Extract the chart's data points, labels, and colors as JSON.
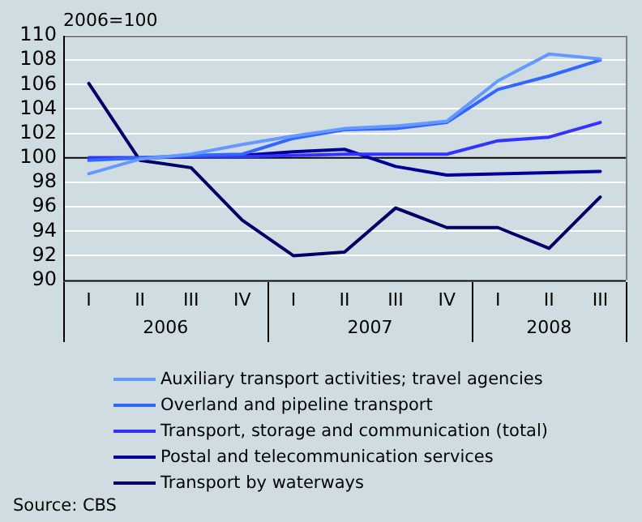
{
  "chart_data": {
    "type": "line",
    "ylabel": "2006=100",
    "categories": [
      "I",
      "II",
      "III",
      "IV",
      "I",
      "II",
      "III",
      "IV",
      "I",
      "II",
      "III"
    ],
    "series": [
      {
        "name": "Auxiliary transport activities; travel agencies",
        "color": "#6699ff",
        "values": [
          98.7,
          99.9,
          100.3,
          101.1,
          101.8,
          102.4,
          102.6,
          103.0,
          106.3,
          108.5,
          108.1
        ]
      },
      {
        "name": "Overland and pipeline transport",
        "color": "#3366ff",
        "values": [
          99.8,
          100.0,
          100.2,
          100.3,
          101.6,
          102.3,
          102.4,
          102.9,
          105.6,
          106.7,
          108.0
        ]
      },
      {
        "name": "Transport, storage and communication (total)",
        "color": "#3333ff",
        "values": [
          100.0,
          100.0,
          100.1,
          100.1,
          100.2,
          100.3,
          100.3,
          100.3,
          101.4,
          101.7,
          102.9
        ]
      },
      {
        "name": "Postal and telecommunication services",
        "color": "#000099",
        "values": [
          100.0,
          100.0,
          100.1,
          100.2,
          100.5,
          100.7,
          99.3,
          98.6,
          98.7,
          98.8,
          98.9
        ]
      },
      {
        "name": "Transport by waterways",
        "color": "#000066",
        "values": [
          106.1,
          99.8,
          99.2,
          94.9,
          92.0,
          92.3,
          95.9,
          94.3,
          94.3,
          92.6,
          96.8
        ]
      }
    ],
    "ylim": [
      90,
      110
    ],
    "yticks": [
      90,
      92,
      94,
      96,
      98,
      100,
      102,
      104,
      106,
      108,
      110
    ],
    "grid": "y",
    "legend": "bottom",
    "marker": "none",
    "line_style": "solid",
    "ref_lines": [
      {
        "axis": "y",
        "value": 100,
        "color": "#000000"
      }
    ],
    "annotations": [
      "2006",
      "2007",
      "2008",
      "Source: CBS"
    ]
  }
}
